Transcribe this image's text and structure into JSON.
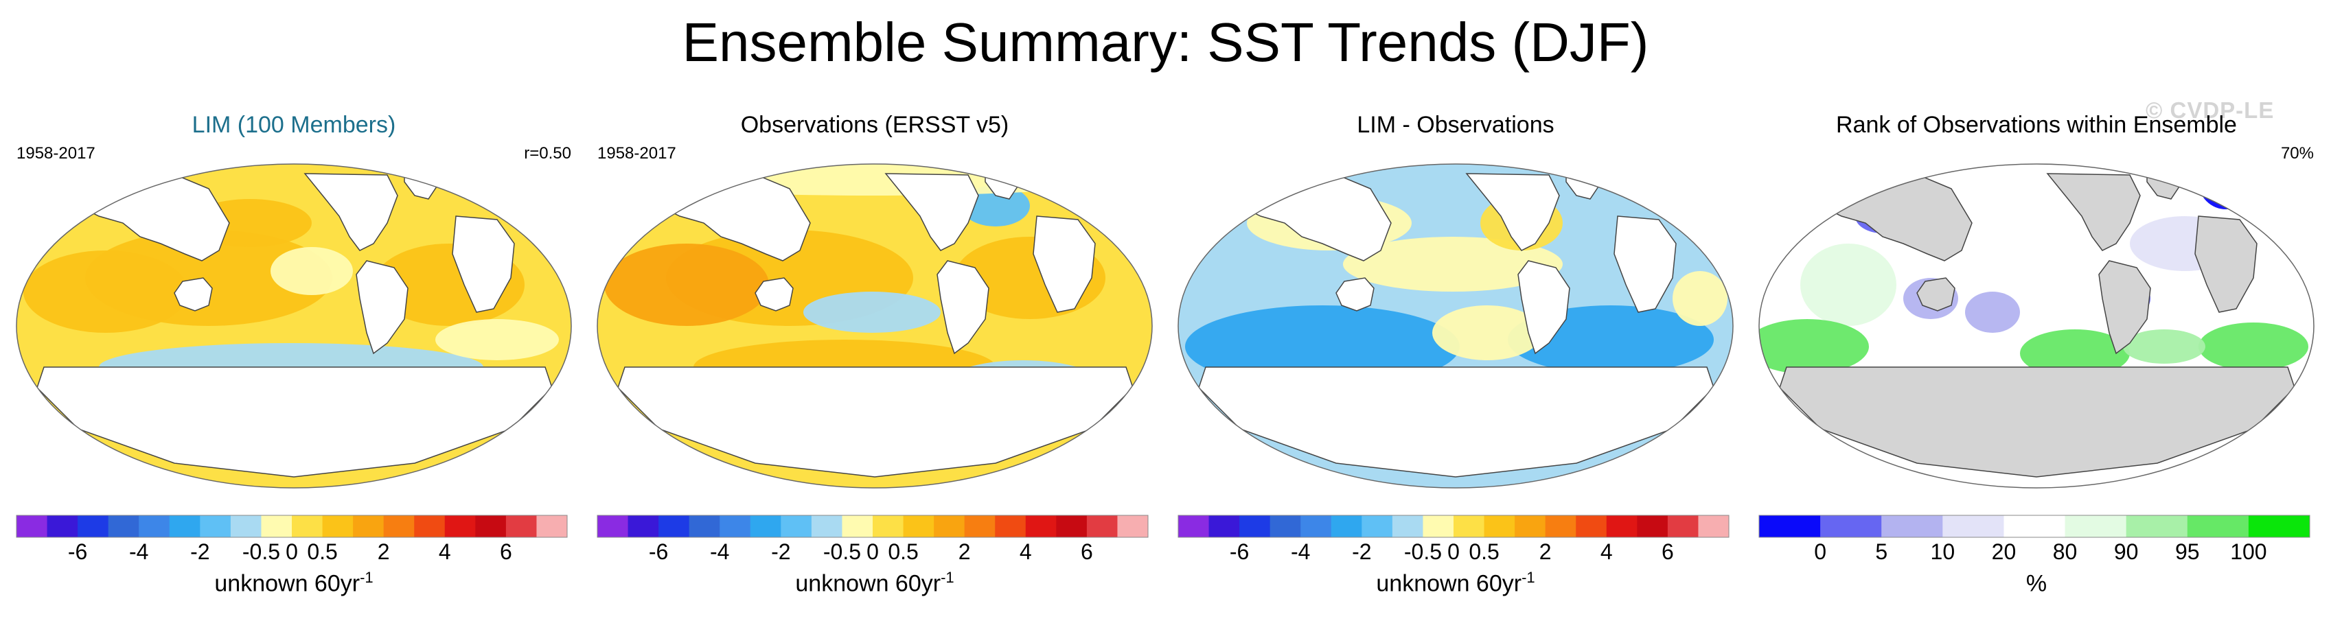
{
  "title": "Ensemble Summary: SST Trends (DJF)",
  "watermark": "© CVDP-LE",
  "panels": [
    {
      "title": "LIM (100 Members)",
      "title_color": "#1c6f8c",
      "left_label": "1958-2017",
      "right_label": "r=0.50",
      "unit": "unknown 60yr",
      "unit_sup": "-1",
      "ticks": [
        "-6",
        "-4",
        "-2",
        "-0.5",
        "0",
        "0.5",
        "2",
        "4",
        "6"
      ]
    },
    {
      "title": "Observations (ERSST v5)",
      "title_color": "#000000",
      "left_label": "1958-2017",
      "right_label": "",
      "unit": "unknown 60yr",
      "unit_sup": "-1",
      "ticks": [
        "-6",
        "-4",
        "-2",
        "-0.5",
        "0",
        "0.5",
        "2",
        "4",
        "6"
      ]
    },
    {
      "title": "LIM - Observations",
      "title_color": "#000000",
      "left_label": "",
      "right_label": "",
      "unit": "unknown 60yr",
      "unit_sup": "-1",
      "ticks": [
        "-6",
        "-4",
        "-2",
        "-0.5",
        "0",
        "0.5",
        "2",
        "4",
        "6"
      ]
    },
    {
      "title": "Rank of Observations within Ensemble",
      "title_color": "#000000",
      "left_label": "",
      "right_label": "70%",
      "unit": "%",
      "unit_sup": "",
      "ticks": [
        "0",
        "5",
        "10",
        "20",
        "80",
        "90",
        "95",
        "100"
      ]
    }
  ],
  "colors": {
    "diverging": [
      "#8a2be2",
      "#3a18d8",
      "#1d3be6",
      "#3168d6",
      "#3d86e8",
      "#2fa7ef",
      "#5fc0f5",
      "#a9daf2",
      "#fffbb0",
      "#fde046",
      "#fbc318",
      "#f9a410",
      "#f77e11",
      "#f04b12",
      "#e01614",
      "#c70a12",
      "#e23c42",
      "#f7aeb0"
    ],
    "rank": [
      "#0a0afa",
      "#6666f2",
      "#b3b3f0",
      "#e3e3f8",
      "#ffffff",
      "#e3fbe3",
      "#a8f0a8",
      "#66e866",
      "#0ae60a"
    ],
    "land": "#ffffff",
    "rank_land": "#d4d4d4"
  }
}
